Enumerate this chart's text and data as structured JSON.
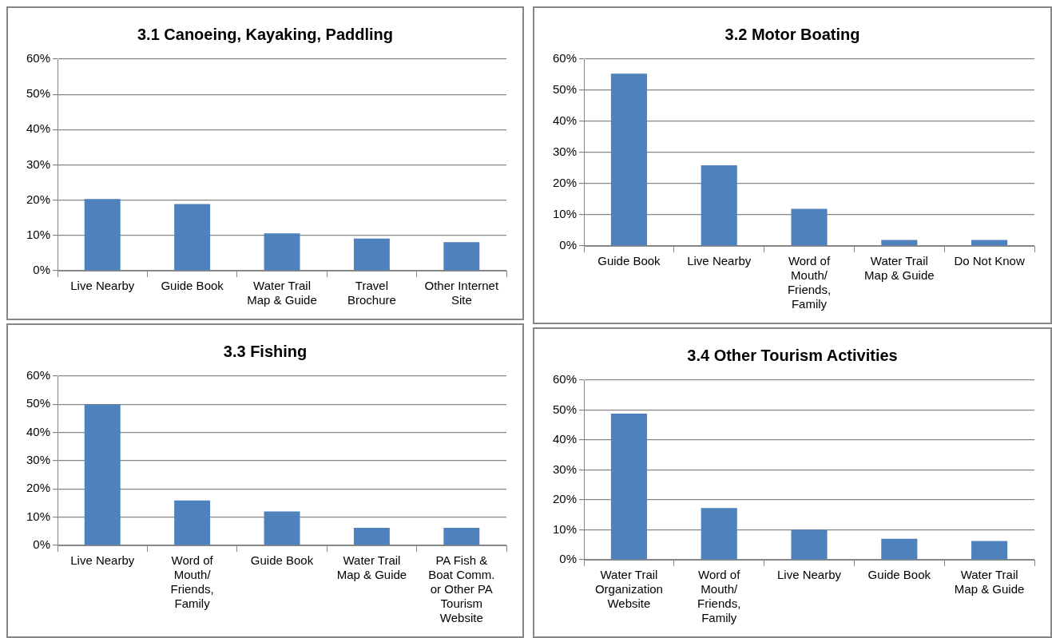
{
  "chart_data": [
    {
      "type": "bar",
      "title": "3.1 Canoeing, Kayaking, Paddling",
      "categories": [
        "Live Nearby",
        "Guide Book",
        "Water Trail Map & Guide",
        "Travel Brochure",
        "Other Internet Site"
      ],
      "values": [
        20.3,
        18.9,
        10.6,
        9.1,
        8.1
      ],
      "color": "#4f81bd",
      "ylim": [
        0,
        60
      ],
      "yticks": [
        {
          "value": 0,
          "label": "0%"
        },
        {
          "value": 10,
          "label": "10%"
        },
        {
          "value": 20,
          "label": "20%"
        },
        {
          "value": 30,
          "label": "30%"
        },
        {
          "value": 40,
          "label": "40%"
        },
        {
          "value": 50,
          "label": "50%"
        },
        {
          "value": 60,
          "label": "60%"
        }
      ],
      "grid": "y",
      "legend": false
    },
    {
      "type": "bar",
      "title": "3.2 Motor Boating",
      "categories": [
        "Guide Book",
        "Live Nearby",
        "Word of Mouth/ Friends, Family",
        "Water Trail Map & Guide",
        "Do Not Know"
      ],
      "values": [
        55.3,
        25.9,
        11.9,
        1.9,
        1.9
      ],
      "color": "#4f81bd",
      "ylim": [
        0,
        60
      ],
      "yticks": [
        {
          "value": 0,
          "label": "0%"
        },
        {
          "value": 10,
          "label": "10%"
        },
        {
          "value": 20,
          "label": "20%"
        },
        {
          "value": 30,
          "label": "30%"
        },
        {
          "value": 40,
          "label": "40%"
        },
        {
          "value": 50,
          "label": "50%"
        },
        {
          "value": 60,
          "label": "60%"
        }
      ],
      "grid": "y",
      "legend": false
    },
    {
      "type": "bar",
      "title": "3.3 Fishing",
      "categories": [
        "Live Nearby",
        "Word of Mouth/ Friends, Family",
        "Guide Book",
        "Water Trail Map & Guide",
        "PA Fish & Boat Comm. or Other PA Tourism Website"
      ],
      "values": [
        49.9,
        15.9,
        12.0,
        6.2,
        6.2
      ],
      "color": "#4f81bd",
      "ylim": [
        0,
        60
      ],
      "yticks": [
        {
          "value": 0,
          "label": "0%"
        },
        {
          "value": 10,
          "label": "10%"
        },
        {
          "value": 20,
          "label": "20%"
        },
        {
          "value": 30,
          "label": "30%"
        },
        {
          "value": 40,
          "label": "40%"
        },
        {
          "value": 50,
          "label": "50%"
        },
        {
          "value": 60,
          "label": "60%"
        }
      ],
      "grid": "y",
      "legend": false
    },
    {
      "type": "bar",
      "title": "3.4 Other Tourism Activities",
      "categories": [
        "Water Trail Organization Website",
        "Word of Mouth/ Friends, Family",
        "Live Nearby",
        "Guide Book",
        "Water Trail Map & Guide"
      ],
      "values": [
        48.8,
        17.3,
        10.1,
        7.0,
        6.3
      ],
      "color": "#4f81bd",
      "ylim": [
        0,
        60
      ],
      "yticks": [
        {
          "value": 0,
          "label": "0%"
        },
        {
          "value": 10,
          "label": "10%"
        },
        {
          "value": 20,
          "label": "20%"
        },
        {
          "value": 30,
          "label": "30%"
        },
        {
          "value": 40,
          "label": "40%"
        },
        {
          "value": 50,
          "label": "50%"
        },
        {
          "value": 60,
          "label": "60%"
        }
      ],
      "grid": "y",
      "legend": false
    }
  ]
}
